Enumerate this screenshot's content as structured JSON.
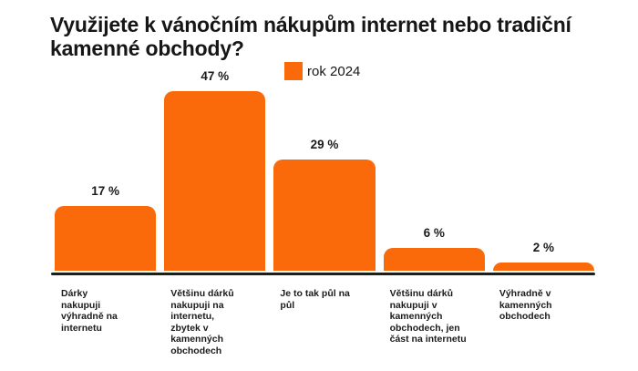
{
  "title": "Využijete k vánočním nákupům internet nebo tradiční kamenné obchody?",
  "legend": {
    "label": "rok 2024",
    "color": "#FA690A"
  },
  "chart_data": {
    "type": "bar",
    "title": "Využijete k vánočním nákupům internet nebo tradiční kamenné obchody?",
    "series_name": "rok 2024",
    "categories": [
      "Dárky nakupuji výhradně na internetu",
      "Většinu dárků nakupuji na internetu, zbytek v kamenných obchodech",
      "Je to tak půl na půl",
      "Většinu dárků nakupuji v kamenných obchodech, jen část na internetu",
      "Výhradně v kamenných obchodech"
    ],
    "values": [
      17,
      47,
      29,
      6,
      2
    ],
    "value_labels": [
      "17 %",
      "47 %",
      "29 %",
      "6 %",
      "2 %"
    ],
    "unit": "%",
    "xlabel": "",
    "ylabel": "",
    "ylim": [
      0,
      50
    ],
    "grid": false,
    "legend_position": "top",
    "bar_color": "#FA690A",
    "axis_color": "#1D1D1D",
    "background": "#FFFFFF",
    "text_color": "#1B1B1B"
  }
}
